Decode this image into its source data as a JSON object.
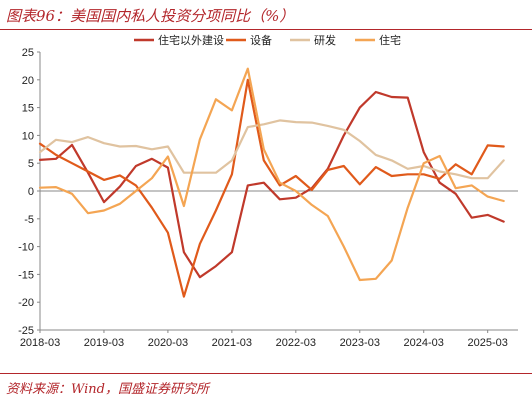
{
  "title": "图表96：美国国内私人投资分项同比（%）",
  "source": "资料来源：Wind，国盛证券研究所",
  "chart_data": {
    "type": "line",
    "x_dates": [
      "2018-03",
      "2018-06",
      "2018-09",
      "2018-12",
      "2019-03",
      "2019-06",
      "2019-09",
      "2019-12",
      "2020-03",
      "2020-06",
      "2020-09",
      "2020-12",
      "2021-03",
      "2021-06",
      "2021-09",
      "2021-12",
      "2022-03",
      "2022-06",
      "2022-09",
      "2022-12",
      "2023-03",
      "2023-06",
      "2023-09",
      "2023-12",
      "2024-03",
      "2024-06",
      "2024-09",
      "2024-12",
      "2025-03",
      "2025-06"
    ],
    "x_tick_labels": [
      "2018-03",
      "2019-03",
      "2020-03",
      "2021-03",
      "2022-03",
      "2023-03",
      "2024-03",
      "2025-03"
    ],
    "ylim": [
      -25,
      25
    ],
    "y_ticks": [
      -25,
      -20,
      -15,
      -10,
      -5,
      0,
      5,
      10,
      15,
      20,
      25
    ],
    "zero_line": true,
    "grid": false,
    "legend_position": "top",
    "series": [
      {
        "name": "住宅以外建设",
        "color": "#c0392b",
        "values": [
          5.6,
          5.8,
          8.3,
          3.3,
          -2.0,
          0.8,
          4.5,
          5.8,
          4.2,
          -11.0,
          -15.5,
          -13.5,
          -11.0,
          1.0,
          1.5,
          -1.5,
          -1.2,
          0.5,
          4.0,
          10.0,
          15.0,
          17.8,
          16.9,
          16.8,
          7.0,
          1.5,
          -0.5,
          -4.8,
          -4.3,
          -5.5
        ]
      },
      {
        "name": "设备",
        "color": "#e05a1b",
        "values": [
          8.5,
          6.5,
          5.0,
          3.5,
          2.0,
          2.8,
          1.0,
          -3.0,
          -7.5,
          -19.0,
          -9.5,
          -3.5,
          3.0,
          20.0,
          5.5,
          1.0,
          2.7,
          0.2,
          3.8,
          4.5,
          1.2,
          4.3,
          2.7,
          3.0,
          3.0,
          2.2,
          4.8,
          3.0,
          8.2,
          8.0
        ]
      },
      {
        "name": "研发",
        "color": "#e0c3a0",
        "values": [
          7.0,
          9.2,
          8.8,
          9.7,
          8.6,
          8.0,
          8.1,
          7.5,
          8.0,
          3.3,
          3.3,
          3.3,
          5.5,
          11.5,
          12.0,
          12.7,
          12.4,
          12.3,
          11.7,
          11.0,
          9.0,
          6.5,
          5.5,
          4.0,
          4.5,
          3.5,
          3.0,
          2.3,
          2.3,
          5.5
        ]
      },
      {
        "name": "住宅",
        "color": "#f4a553",
        "values": [
          0.6,
          0.7,
          -0.5,
          -4.0,
          -3.5,
          -2.3,
          0.0,
          2.3,
          6.2,
          -2.7,
          9.3,
          16.5,
          14.5,
          22.0,
          7.5,
          1.5,
          0.0,
          -2.5,
          -4.5,
          -10.0,
          -16.0,
          -15.8,
          -12.5,
          -3.0,
          5.0,
          6.3,
          0.5,
          1.0,
          -1.0,
          -1.8
        ]
      }
    ]
  }
}
